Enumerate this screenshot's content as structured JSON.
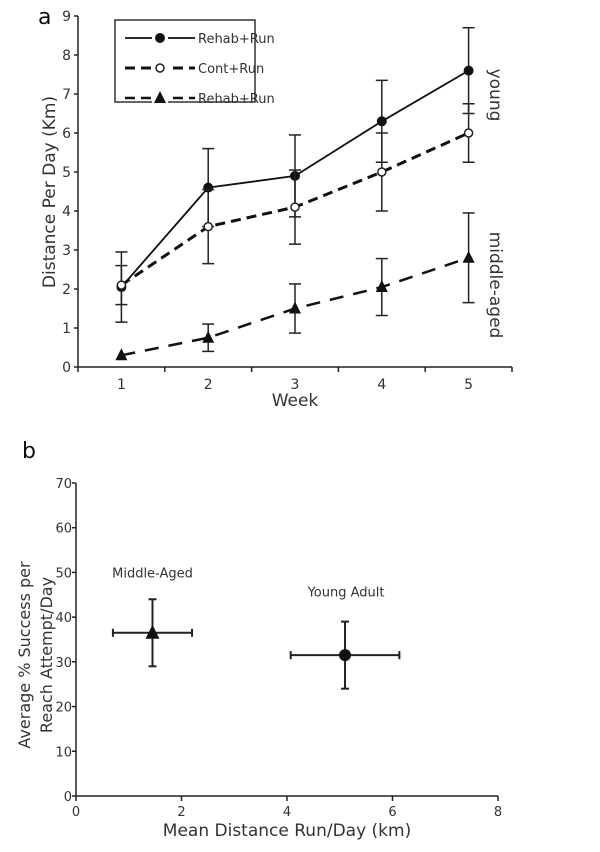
{
  "chart_data": [
    {
      "panel_label": "a",
      "type": "line",
      "title": "",
      "xlabel": "Week",
      "ylabel": "Distance Per Day (Km)",
      "x": [
        1,
        2,
        3,
        4,
        5
      ],
      "xticks": [
        "1",
        "2",
        "3",
        "4",
        "5"
      ],
      "yticks": [
        "0",
        "1",
        "2",
        "3",
        "4",
        "5",
        "6",
        "7",
        "8",
        "9"
      ],
      "ylim": [
        0,
        9
      ],
      "legend_position": "top-left",
      "side_labels": [
        "young",
        "middle-aged"
      ],
      "series": [
        {
          "name": "Rehab+Run",
          "group": "young",
          "style": "solid",
          "marker": "filled-circle",
          "values": [
            2.05,
            4.6,
            4.9,
            6.3,
            7.6
          ],
          "err": [
            0.9,
            1.0,
            1.05,
            1.05,
            1.1
          ]
        },
        {
          "name": "Cont+Run",
          "group": "young",
          "style": "dashed",
          "marker": "open-circle",
          "values": [
            2.1,
            3.6,
            4.1,
            5.0,
            6.0
          ],
          "err": [
            0.5,
            0.95,
            0.95,
            1.0,
            0.75
          ]
        },
        {
          "name": "Rehab+Run",
          "group": "middle-aged",
          "style": "long-dashed",
          "marker": "filled-triangle",
          "values": [
            0.3,
            0.75,
            1.5,
            2.05,
            2.8
          ],
          "err": [
            0.0,
            0.35,
            0.63,
            0.73,
            1.15
          ]
        }
      ]
    },
    {
      "panel_label": "b",
      "type": "scatter",
      "xlabel": "Mean Distance Run/Day (km)",
      "ylabel_line1": "Average %  Success per",
      "ylabel_line2": "Reach Attempt/Day",
      "xlim": [
        0,
        8
      ],
      "ylim": [
        0,
        70
      ],
      "xticks": [
        "0",
        "2",
        "4",
        "6",
        "8"
      ],
      "yticks": [
        "0",
        "10",
        "20",
        "30",
        "40",
        "50",
        "60",
        "70"
      ],
      "points": [
        {
          "label": "Middle-Aged",
          "marker": "filled-triangle",
          "x": 1.45,
          "y": 36.5,
          "xerr": 0.75,
          "yerr": 7.5
        },
        {
          "label": "Young Adult",
          "marker": "filled-circle",
          "x": 5.1,
          "y": 31.5,
          "xerr": 1.03,
          "yerr": 7.5
        }
      ]
    }
  ]
}
